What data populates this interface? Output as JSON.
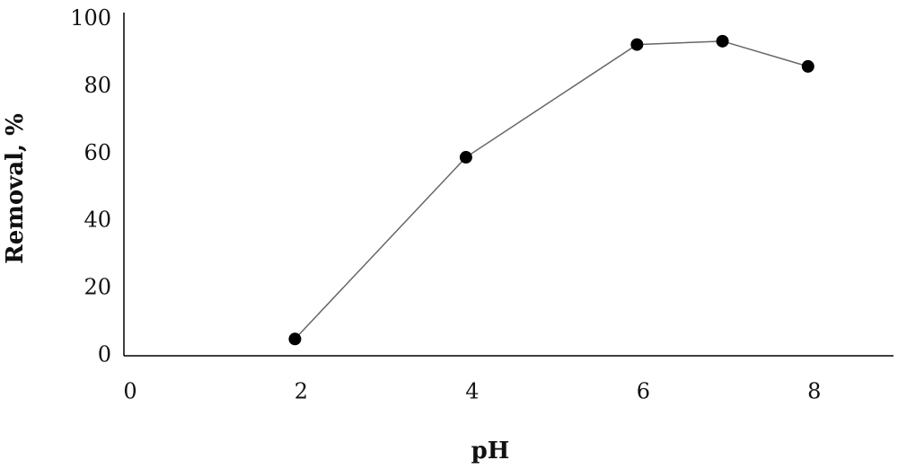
{
  "chart_data": {
    "type": "line",
    "x_label": "pH",
    "y_label": "Removal, %",
    "x": [
      2,
      4,
      6,
      7,
      8
    ],
    "series": [
      {
        "color": "#000000",
        "values": [
          5,
          59,
          92.5,
          93.5,
          86
        ]
      }
    ],
    "xlim": [
      0,
      9
    ],
    "ylim": [
      0,
      102
    ],
    "xticks": [
      0,
      2,
      4,
      6,
      8
    ],
    "yticks": [
      0,
      20,
      40,
      60,
      80,
      100
    ],
    "grid": false
  }
}
